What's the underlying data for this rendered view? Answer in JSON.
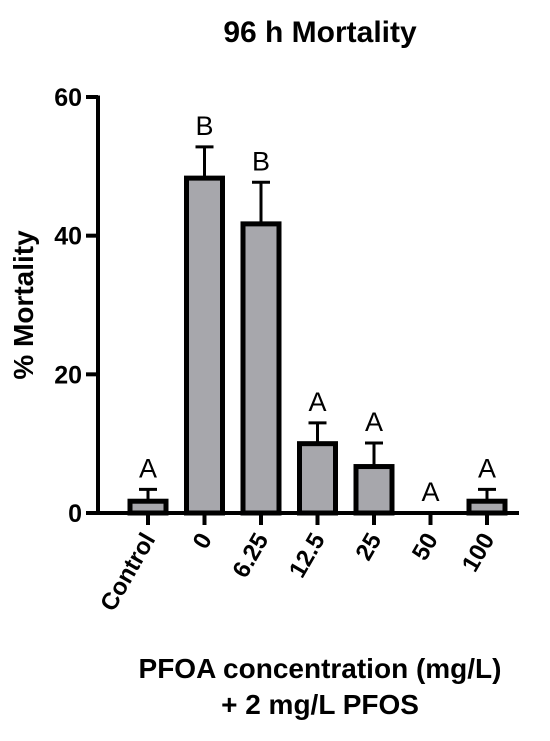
{
  "chart_data": {
    "type": "bar",
    "title": "96 h Mortality",
    "ylabel": "%  Mortality",
    "xlabel_lines": [
      "PFOA concentration (mg/L)",
      "+ 2 mg/L PFOS"
    ],
    "categories": [
      "Control",
      "0",
      "6.25",
      "12.5",
      "25",
      "50",
      "100"
    ],
    "values": [
      1.7,
      48.3,
      41.7,
      10.0,
      6.7,
      0,
      1.7
    ],
    "error_upper": [
      1.7,
      4.5,
      6.0,
      3.0,
      3.4,
      0,
      1.7
    ],
    "significance": [
      "A",
      "B",
      "B",
      "A",
      "A",
      "A",
      "A"
    ],
    "ylim": [
      0,
      60
    ],
    "yticks": [
      0,
      20,
      40,
      60
    ],
    "bar_color": "#a7a7ac",
    "edge_color": "#000000"
  }
}
